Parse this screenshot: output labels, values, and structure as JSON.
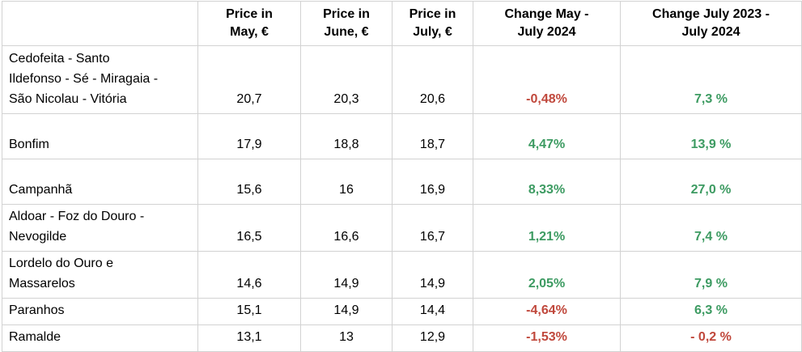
{
  "colors": {
    "positive": "#3d9b62",
    "negative": "#c0483c",
    "border": "#d2d2d2",
    "text": "#000000"
  },
  "table": {
    "columns": [
      {
        "label": ""
      },
      {
        "label": "Price in\nMay, €"
      },
      {
        "label": "Price in\nJune, €"
      },
      {
        "label": "Price in\nJuly, €"
      },
      {
        "label": "Change May -\nJuly 2024"
      },
      {
        "label": "Change July 2023 -\nJuly 2024"
      }
    ],
    "rows": [
      {
        "district": "Cedofeita - Santo\nIldefonso - Sé - Miragaia -\nSão Nicolau - Vitória",
        "price_may": "20,7",
        "price_june": "20,3",
        "price_july": "20,6",
        "change_may_july": "-0,48%",
        "change_may_july_trend": "negative",
        "change_yoy": "7,3 %",
        "change_yoy_trend": "positive"
      },
      {
        "district": "Bonfim",
        "price_may": "17,9",
        "price_june": "18,8",
        "price_july": "18,7",
        "change_may_july": "4,47%",
        "change_may_july_trend": "positive",
        "change_yoy": "13,9 %",
        "change_yoy_trend": "positive"
      },
      {
        "district": "Campanhã",
        "price_may": "15,6",
        "price_june": "16",
        "price_july": "16,9",
        "change_may_july": "8,33%",
        "change_may_july_trend": "positive",
        "change_yoy": "27,0 %",
        "change_yoy_trend": "positive"
      },
      {
        "district": "Aldoar - Foz do Douro -\nNevogilde",
        "price_may": "16,5",
        "price_june": "16,6",
        "price_july": "16,7",
        "change_may_july": "1,21%",
        "change_may_july_trend": "positive",
        "change_yoy": "7,4 %",
        "change_yoy_trend": "positive"
      },
      {
        "district": "Lordelo do Ouro e\nMassarelos",
        "price_may": "14,6",
        "price_june": "14,9",
        "price_july": "14,9",
        "change_may_july": "2,05%",
        "change_may_july_trend": "positive",
        "change_yoy": "7,9 %",
        "change_yoy_trend": "positive"
      },
      {
        "district": "Paranhos",
        "price_may": "15,1",
        "price_june": "14,9",
        "price_july": "14,4",
        "change_may_july": "-4,64%",
        "change_may_july_trend": "negative",
        "change_yoy": "6,3 %",
        "change_yoy_trend": "positive"
      },
      {
        "district": "Ramalde",
        "price_may": "13,1",
        "price_june": "13",
        "price_july": "12,9",
        "change_may_july": "-1,53%",
        "change_may_july_trend": "negative",
        "change_yoy": "- 0,2 %",
        "change_yoy_trend": "negative"
      }
    ]
  },
  "chart_data": {
    "type": "table",
    "title": "",
    "columns": [
      "District",
      "Price in May, €",
      "Price in June, €",
      "Price in July, €",
      "Change May - July 2024",
      "Change July 2023 - July 2024"
    ],
    "rows": [
      [
        "Cedofeita - Santo Ildefonso - Sé - Miragaia - São Nicolau - Vitória",
        20.7,
        20.3,
        20.6,
        -0.48,
        7.3
      ],
      [
        "Bonfim",
        17.9,
        18.8,
        18.7,
        4.47,
        13.9
      ],
      [
        "Campanhã",
        15.6,
        16,
        16.9,
        8.33,
        27.0
      ],
      [
        "Aldoar - Foz do Douro - Nevogilde",
        16.5,
        16.6,
        16.7,
        1.21,
        7.4
      ],
      [
        "Lordelo do Ouro e Massarelos",
        14.6,
        14.9,
        14.9,
        2.05,
        7.9
      ],
      [
        "Paranhos",
        15.1,
        14.9,
        14.4,
        -4.64,
        6.3
      ],
      [
        "Ramalde",
        13.1,
        13,
        12.9,
        -1.53,
        -0.2
      ]
    ],
    "units": {
      "prices": "EUR",
      "changes": "percent"
    },
    "layout_hints": {
      "negative_changes_colored_red": true,
      "positive_changes_colored_green": true,
      "change_columns_bold": true,
      "grid": "on"
    }
  }
}
